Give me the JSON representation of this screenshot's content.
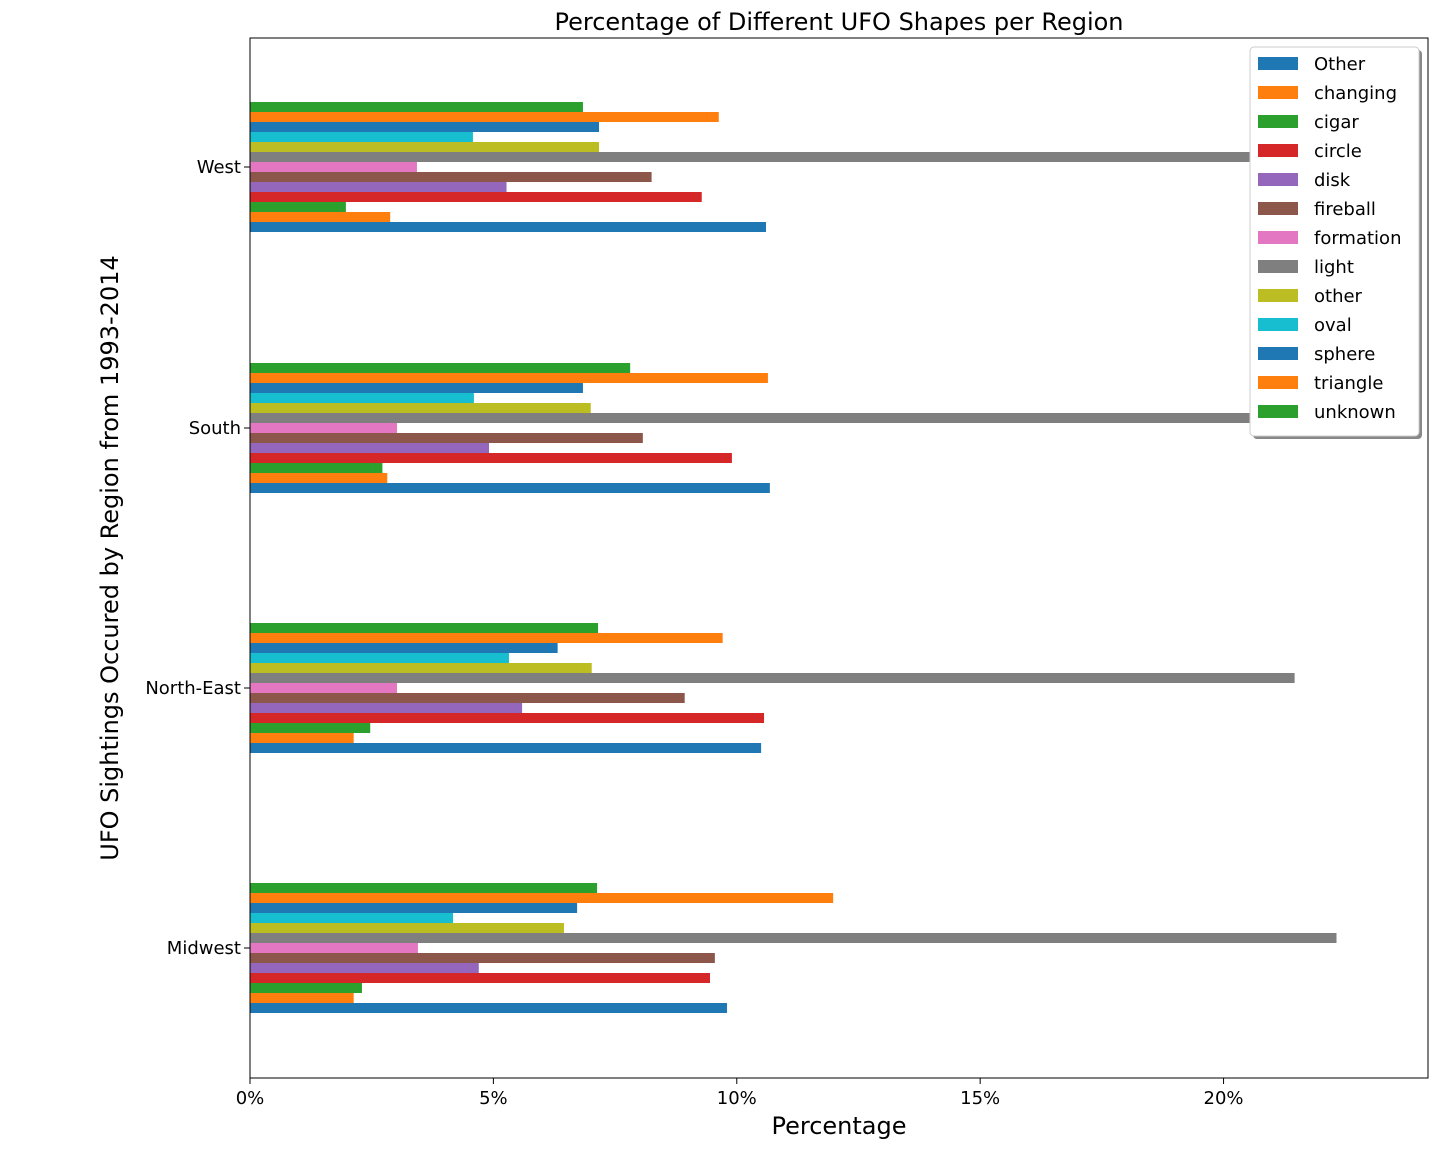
{
  "chart_data": {
    "type": "bar",
    "orientation": "horizontal",
    "title": "Percentage of Different UFO Shapes per Region",
    "xlabel": "Percentage",
    "ylabel": "UFO Sightings Occured by Region from 1993-2014",
    "xlim": [
      0,
      24.2
    ],
    "xticks": [
      0,
      5,
      10,
      15,
      20
    ],
    "xtick_labels": [
      "0%",
      "5%",
      "10%",
      "15%",
      "20%"
    ],
    "grid": false,
    "legend_position": "top-right",
    "categories": [
      "West",
      "South",
      "North-East",
      "Midwest"
    ],
    "series": [
      {
        "name": "Other",
        "color": "#1f77b4",
        "values": [
          10.6,
          10.68,
          10.5,
          9.8
        ]
      },
      {
        "name": "changing",
        "color": "#ff7f0e",
        "values": [
          2.88,
          2.82,
          2.13,
          2.13
        ]
      },
      {
        "name": "cigar",
        "color": "#2ca02c",
        "values": [
          1.97,
          2.72,
          2.47,
          2.3
        ]
      },
      {
        "name": "circle",
        "color": "#d62728",
        "values": [
          9.28,
          9.9,
          10.56,
          9.45
        ]
      },
      {
        "name": "disk",
        "color": "#9467bd",
        "values": [
          5.27,
          4.91,
          5.59,
          4.7
        ]
      },
      {
        "name": "fireball",
        "color": "#8c564b",
        "values": [
          8.25,
          8.07,
          8.93,
          9.55
        ]
      },
      {
        "name": "formation",
        "color": "#e377c2",
        "values": [
          3.43,
          3.02,
          3.02,
          3.45
        ]
      },
      {
        "name": "light",
        "color": "#7f7f7f",
        "values": [
          22.0,
          22.0,
          21.46,
          22.32
        ]
      },
      {
        "name": "other",
        "color": "#bcbd22",
        "values": [
          7.17,
          7.0,
          7.02,
          6.45
        ]
      },
      {
        "name": "oval",
        "color": "#17becf",
        "values": [
          4.58,
          4.6,
          5.32,
          4.17
        ]
      },
      {
        "name": "sphere",
        "color": "#1f77b4",
        "values": [
          7.17,
          6.84,
          6.32,
          6.72
        ]
      },
      {
        "name": "triangle",
        "color": "#ff7f0e",
        "values": [
          9.63,
          10.64,
          9.71,
          11.98
        ]
      },
      {
        "name": "unknown",
        "color": "#2ca02c",
        "values": [
          6.84,
          7.81,
          7.15,
          7.13
        ]
      }
    ]
  }
}
